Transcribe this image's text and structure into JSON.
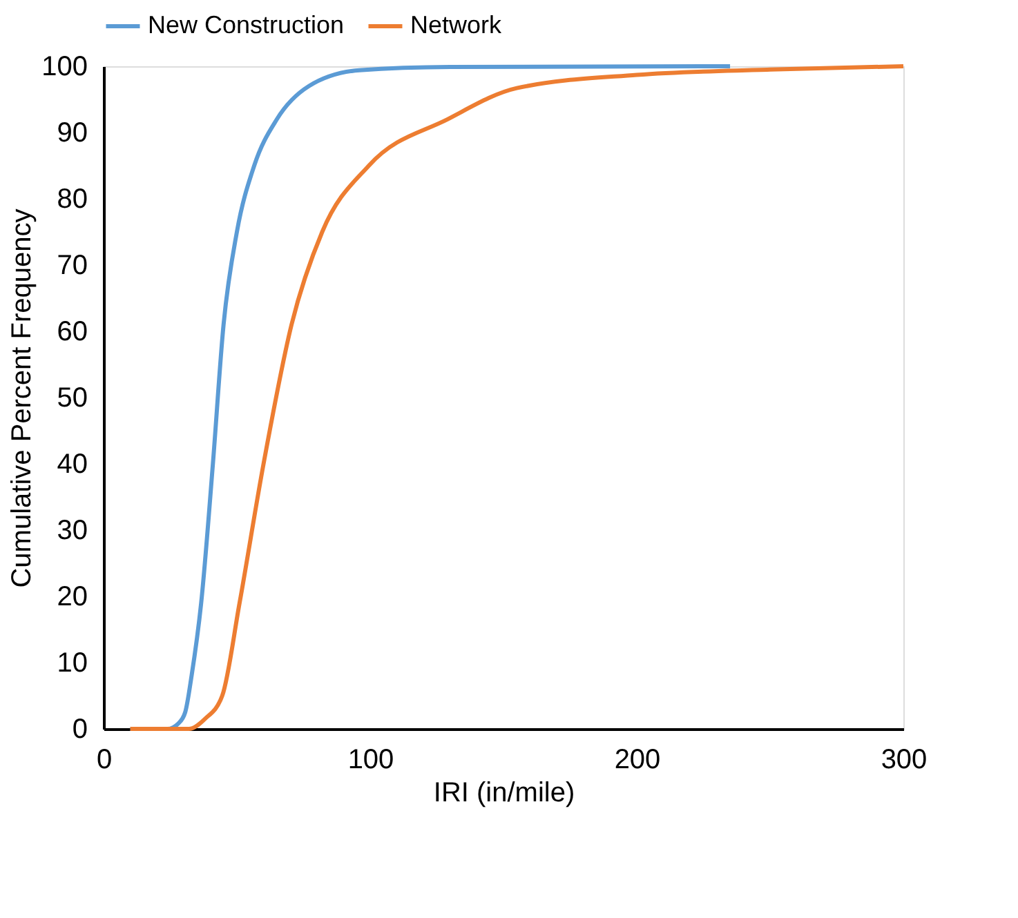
{
  "chart_data": {
    "type": "line",
    "xlabel": "IRI (in/mile)",
    "ylabel": "Cumulative Percent Frequency",
    "xlim": [
      0,
      300
    ],
    "xticks": [
      0,
      100,
      200,
      300
    ],
    "ylim": [
      0,
      100
    ],
    "yticks": [
      0,
      10,
      20,
      30,
      40,
      50,
      60,
      70,
      80,
      90,
      100
    ],
    "grid": false,
    "legend": "top",
    "marker": "none",
    "line_style": "solid",
    "series": [
      {
        "name": "New Construction",
        "color": "#5b9bd5",
        "x": [
          10,
          24,
          28,
          30.6,
          33,
          36.6,
          41,
          45,
          50,
          56.5,
          65,
          77,
          96,
          130,
          235
        ],
        "values": [
          0,
          0,
          0.8,
          2.5,
          8,
          19,
          40,
          61,
          75,
          85,
          92,
          97,
          99.4,
          99.9,
          100
        ]
      },
      {
        "name": "Network",
        "color": "#ed7d31",
        "x": [
          10,
          32,
          38,
          44.5,
          51,
          60,
          70.5,
          82,
          99.5,
          129,
          155,
          200,
          250,
          300
        ],
        "values": [
          0,
          0,
          1.5,
          5,
          19,
          40,
          61,
          75,
          85,
          92,
          96.7,
          98.7,
          99.5,
          100
        ]
      }
    ]
  }
}
